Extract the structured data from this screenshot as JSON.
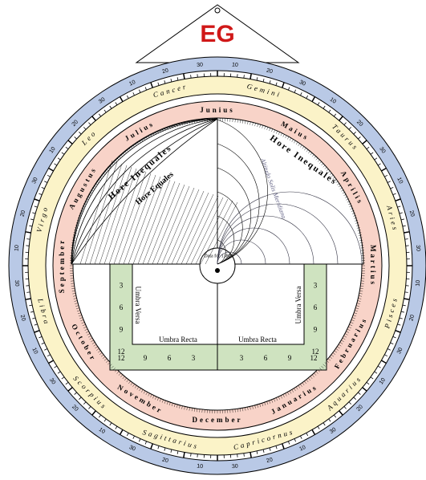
{
  "logo": "EG",
  "months": [
    "Januarius",
    "Februarius",
    "Martius",
    "Aprilis",
    "Maius",
    "Junius",
    "Julius",
    "Augustus",
    "September",
    "October",
    "November",
    "December"
  ],
  "zodiac": [
    "Aries",
    "Taurus",
    "Gemini",
    "Cancer",
    "Leo",
    "Virgo",
    "Libra",
    "Scorpius",
    "Sagittarius",
    "Capricornus",
    "Aquarius",
    "Pisces"
  ],
  "ring_scale": [
    "10",
    "20",
    "30"
  ],
  "plate": {
    "left_arc": "Hore Inequales",
    "right_arc": "Hore Inequales",
    "hours": "Hore Equales",
    "altitude": "Altitudo Solis Meridiana",
    "center": "Data for 1380"
  },
  "shadow_square": {
    "recta": "Umbra Recta",
    "versa": "Umbra Versa",
    "scale": [
      "3",
      "6",
      "9",
      "12"
    ]
  }
}
